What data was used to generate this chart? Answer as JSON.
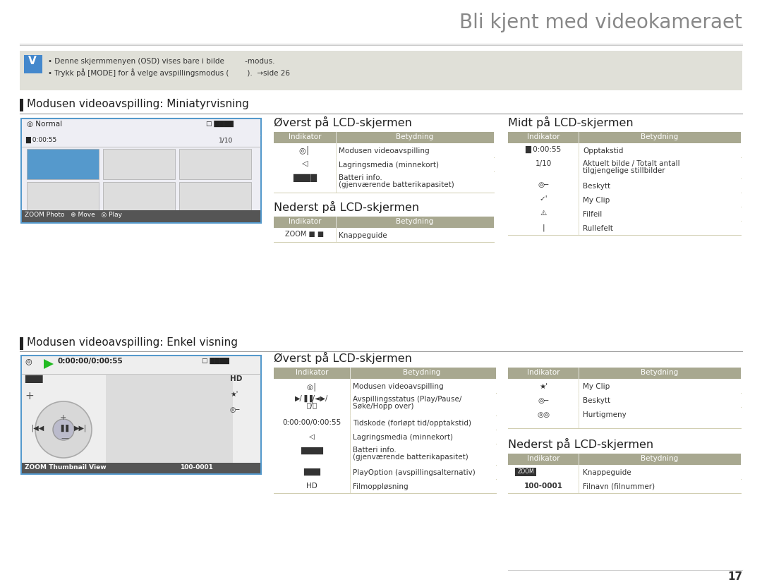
{
  "title": "Bli kjent med videokameraet",
  "title_color": "#888888",
  "bg_color": "#ffffff",
  "note_bg": "#e0e0d8",
  "section1_title": "Modusen videoavspilling: Miniatyrvisning",
  "section2_title": "Modusen videoavspilling: Enkel visning",
  "header_color": "#a8a890",
  "table_line_color": "#d0cdb0",
  "page_number": "17",
  "top1_title": "Øverst på LCD-skjermen",
  "mid1_title": "Midt på LCD-skjermen",
  "bottom1_title": "Nederst på LCD-skjermen",
  "top2_title": "Øverst på LCD-skjermen",
  "bottom2_title": "Nederst på LCD-skjermen"
}
